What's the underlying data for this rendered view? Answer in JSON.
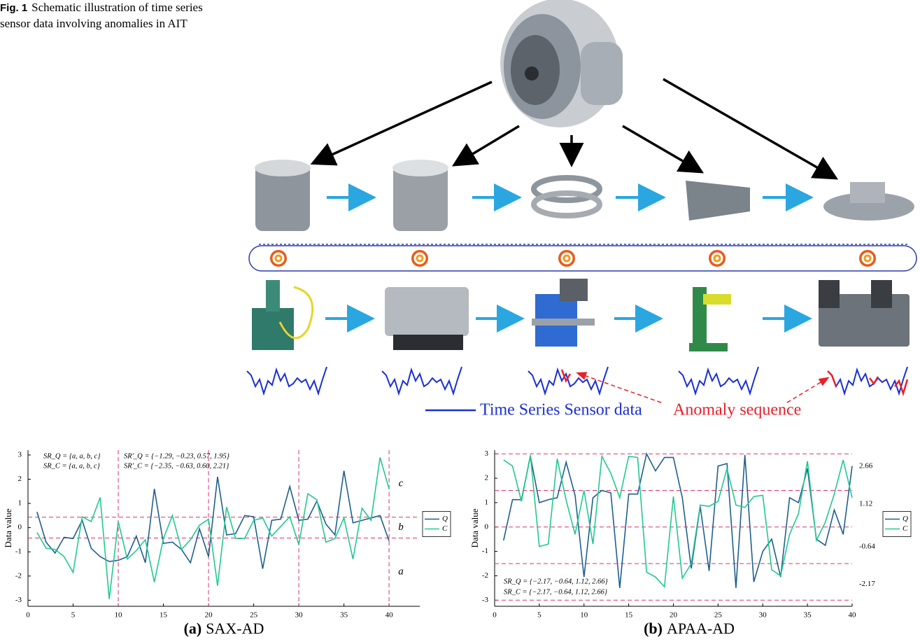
{
  "caption": {
    "label": "Fig. 1",
    "text": "Schematic illustration of time series sensor data involving anomalies in AIT"
  },
  "diagram": {
    "legend_sensor": "Time Series Sensor data",
    "legend_anomaly": "Anomaly sequence"
  },
  "chart_data": [
    {
      "type": "line",
      "caption_label": "(a)",
      "caption": "SAX-AD",
      "ylabel": "Data value",
      "annotations": [
        "SR_Q = {a, a, b, c}",
        "SR_C = {a, a, b, c}",
        "SR'_Q = {−1.29, −0.23, 0.57, 1.95}",
        "SR'_C = {−2.35, −0.63, 0.60, 2.21}"
      ],
      "region_labels": [
        "c",
        "b",
        "a"
      ],
      "x": [
        1,
        2,
        3,
        4,
        5,
        6,
        7,
        8,
        9,
        10,
        11,
        12,
        13,
        14,
        15,
        16,
        17,
        18,
        19,
        20,
        21,
        22,
        23,
        24,
        25,
        26,
        27,
        28,
        29,
        30,
        31,
        32,
        33,
        34,
        35,
        36,
        37,
        38,
        39,
        40
      ],
      "series": [
        {
          "name": "Q",
          "color": "#1f5f8f",
          "values": [
            0.65,
            -0.6,
            -1.05,
            -0.4,
            -0.45,
            0.3,
            -0.85,
            -1.2,
            -1.4,
            -1.35,
            -1.2,
            -0.35,
            -1.45,
            1.6,
            -0.65,
            -0.6,
            -0.9,
            -1.45,
            -0.05,
            -1.2,
            2.1,
            -0.3,
            -0.25,
            0.5,
            0.45,
            -1.7,
            0.3,
            0.35,
            1.7,
            0.3,
            0.35,
            1.1,
            0.15,
            -0.3,
            2.35,
            0.2,
            0.3,
            0.4,
            0.5,
            -0.55
          ]
        },
        {
          "name": "C",
          "color": "#22c98f",
          "values": [
            -0.2,
            -0.85,
            -0.9,
            -1.2,
            -1.85,
            0.45,
            0.25,
            1.25,
            -2.95,
            0.25,
            -1.3,
            -0.95,
            -0.5,
            -2.25,
            -0.45,
            0.5,
            -0.9,
            -0.5,
            0.1,
            0.35,
            -2.4,
            0.85,
            -0.45,
            -0.45,
            0.3,
            0.4,
            -0.35,
            0.05,
            0.45,
            -0.7,
            1.4,
            1.15,
            -0.6,
            -0.45,
            0.4,
            -1.3,
            0.8,
            0.3,
            2.9,
            1.6
          ]
        }
      ],
      "hlines": [
        0.43,
        -0.43
      ],
      "vlines": [
        10,
        20,
        30,
        40
      ],
      "ref_color": "#e0306a",
      "xlim": [
        0,
        43.4
      ],
      "xticks": [
        0,
        5,
        10,
        15,
        20,
        25,
        30,
        35,
        40
      ],
      "ylim": [
        -3.25,
        3.2
      ],
      "yticks": [
        -3,
        -2,
        -1,
        0,
        1,
        2,
        3
      ],
      "legend": "right"
    },
    {
      "type": "line",
      "caption_label": "(b)",
      "caption": "APAA-AD",
      "ylabel": "Data value",
      "annotations": [
        "SR_Q = {−2.17, −0.64, 1.12, 2.66}",
        "SR_C = {−2.17, −0.64, 1.12, 2.66}"
      ],
      "right_labels": [
        2.66,
        1.12,
        -0.64,
        -2.17
      ],
      "x": [
        1,
        2,
        3,
        4,
        5,
        6,
        7,
        8,
        9,
        10,
        11,
        12,
        13,
        14,
        15,
        16,
        17,
        18,
        19,
        20,
        21,
        22,
        23,
        24,
        25,
        26,
        27,
        28,
        29,
        30,
        31,
        32,
        33,
        34,
        35,
        36,
        37,
        38,
        39,
        40
      ],
      "series": [
        {
          "name": "Q",
          "color": "#1f5f8f",
          "values": [
            -0.55,
            1.12,
            1.12,
            2.9,
            1.0,
            1.12,
            1.2,
            2.66,
            1.3,
            -2.05,
            1.2,
            1.5,
            1.4,
            -2.5,
            1.35,
            1.35,
            3.0,
            2.3,
            2.85,
            2.85,
            1.2,
            -1.7,
            0.85,
            -1.8,
            2.5,
            2.6,
            -2.5,
            2.95,
            -2.25,
            -1.0,
            -0.5,
            -2.05,
            1.2,
            1.0,
            2.4,
            -0.5,
            -0.75,
            0.7,
            -0.3,
            2.5
          ]
        },
        {
          "name": "C",
          "color": "#22c98f",
          "values": [
            2.75,
            2.5,
            1.05,
            2.95,
            -0.8,
            -0.7,
            2.8,
            1.1,
            -0.3,
            1.5,
            -0.7,
            2.9,
            2.2,
            1.2,
            2.9,
            2.85,
            -1.85,
            -2.05,
            -2.45,
            1.25,
            -2.1,
            -1.5,
            0.9,
            0.85,
            1.05,
            2.4,
            0.9,
            0.8,
            1.25,
            1.3,
            -1.75,
            -2.0,
            -0.3,
            0.55,
            2.7,
            -0.55,
            0.2,
            1.35,
            2.75,
            1.2
          ]
        }
      ],
      "hlines": [
        3,
        1.5,
        0,
        -1.5,
        -3
      ],
      "ref_color": "#e0306a",
      "xlim": [
        0,
        40
      ],
      "xticks": [
        0,
        5,
        10,
        15,
        20,
        25,
        30,
        35,
        40
      ],
      "ylim": [
        -3.25,
        3.15
      ],
      "yticks": [
        -3,
        -2,
        -1,
        0,
        1,
        2,
        3
      ],
      "legend": "right"
    }
  ]
}
